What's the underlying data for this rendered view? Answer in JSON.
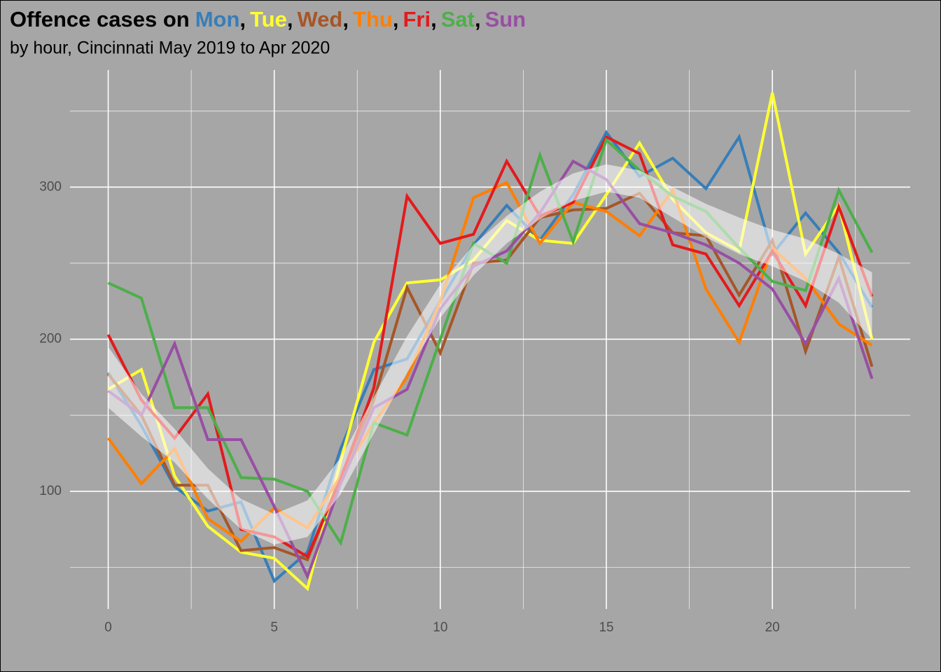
{
  "chart_data": {
    "type": "line",
    "title": "Offence cases on",
    "title_separator": ",",
    "subtitle": "by hour, Cincinnati May 2019 to Apr 2020",
    "x": [
      0,
      1,
      2,
      3,
      4,
      5,
      6,
      7,
      8,
      9,
      10,
      11,
      12,
      13,
      14,
      15,
      16,
      17,
      18,
      19,
      20,
      21,
      22,
      23
    ],
    "xlim": [
      -1.15,
      24.15
    ],
    "ylim": [
      22.6,
      377
    ],
    "xticks": [
      0,
      5,
      10,
      15,
      20
    ],
    "yticks": [
      100,
      200,
      300
    ],
    "xminor": [
      2.5,
      7.5,
      12.5,
      17.5,
      22.5
    ],
    "yminor": [
      50,
      150,
      250,
      350
    ],
    "grid": true,
    "series": [
      {
        "name": "Mon",
        "color": "#377eb8",
        "values": [
          178,
          143,
          103,
          87,
          93,
          41,
          60,
          128,
          180,
          187,
          225,
          262,
          288,
          265,
          295,
          336,
          307,
          319,
          299,
          333,
          256,
          283,
          257,
          221
        ]
      },
      {
        "name": "Tue",
        "color": "#ffff33",
        "values": [
          167,
          180,
          110,
          77,
          60,
          56,
          36,
          120,
          198,
          237,
          239,
          252,
          278,
          265,
          263,
          295,
          329,
          292,
          270,
          258,
          362,
          256,
          288,
          200
        ]
      },
      {
        "name": "Wed",
        "color": "#a65628",
        "values": [
          177,
          150,
          104,
          104,
          61,
          63,
          55,
          110,
          160,
          234,
          191,
          250,
          252,
          280,
          285,
          286,
          296,
          270,
          268,
          229,
          265,
          192,
          254,
          182
        ]
      },
      {
        "name": "Thu",
        "color": "#ff7f00",
        "values": [
          135,
          105,
          128,
          82,
          67,
          89,
          76,
          110,
          145,
          175,
          225,
          293,
          303,
          263,
          290,
          284,
          268,
          298,
          233,
          198,
          260,
          240,
          210,
          196
        ]
      },
      {
        "name": "Fri",
        "color": "#e41a1c",
        "values": [
          203,
          160,
          135,
          164,
          75,
          70,
          57,
          108,
          168,
          294,
          263,
          269,
          317,
          281,
          290,
          333,
          322,
          262,
          256,
          222,
          258,
          222,
          287,
          228
        ]
      },
      {
        "name": "Sat",
        "color": "#4daf4a",
        "values": [
          237,
          227,
          155,
          155,
          109,
          108,
          100,
          66,
          145,
          137,
          200,
          263,
          250,
          321,
          264,
          331,
          311,
          294,
          284,
          260,
          238,
          232,
          298,
          257
        ]
      },
      {
        "name": "Sun",
        "color": "#984ea3",
        "values": [
          166,
          150,
          197,
          134,
          134,
          90,
          44,
          105,
          155,
          167,
          220,
          248,
          258,
          283,
          317,
          305,
          276,
          270,
          262,
          250,
          233,
          197,
          240,
          174
        ]
      }
    ],
    "band": {
      "color": "#ffffff",
      "lower": [
        155,
        136,
        119,
        95,
        75,
        65,
        70,
        98,
        138,
        178,
        214,
        242,
        263,
        279,
        291,
        297,
        293,
        280,
        267,
        256,
        248,
        238,
        224,
        200
      ],
      "upper": [
        195,
        164,
        141,
        115,
        95,
        85,
        94,
        122,
        162,
        202,
        236,
        262,
        281,
        297,
        309,
        315,
        311,
        300,
        289,
        280,
        272,
        266,
        256,
        244
      ]
    }
  }
}
